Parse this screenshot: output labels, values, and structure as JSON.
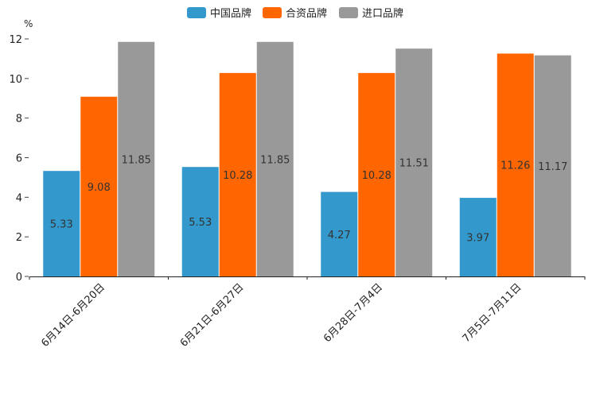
{
  "chart_data": {
    "type": "bar",
    "title": "",
    "xlabel": "",
    "ylabel": "%",
    "ylim": [
      0,
      12
    ],
    "yticks": [
      0,
      2,
      4,
      6,
      8,
      10,
      12
    ],
    "grid": false,
    "legend": "top-center",
    "categories": [
      "6月14日-6月20日",
      "6月21日-6月27日",
      "6月28日-7月4日",
      "7月5日-7月11日"
    ],
    "series": [
      {
        "name": "中国品牌",
        "color": "#3399CC",
        "values": [
          5.33,
          5.53,
          4.27,
          3.97
        ]
      },
      {
        "name": "合资品牌",
        "color": "#FF6600",
        "values": [
          9.08,
          10.28,
          10.28,
          11.26
        ]
      },
      {
        "name": "进口品牌",
        "color": "#999999",
        "values": [
          11.85,
          11.85,
          11.51,
          11.17
        ]
      }
    ]
  }
}
